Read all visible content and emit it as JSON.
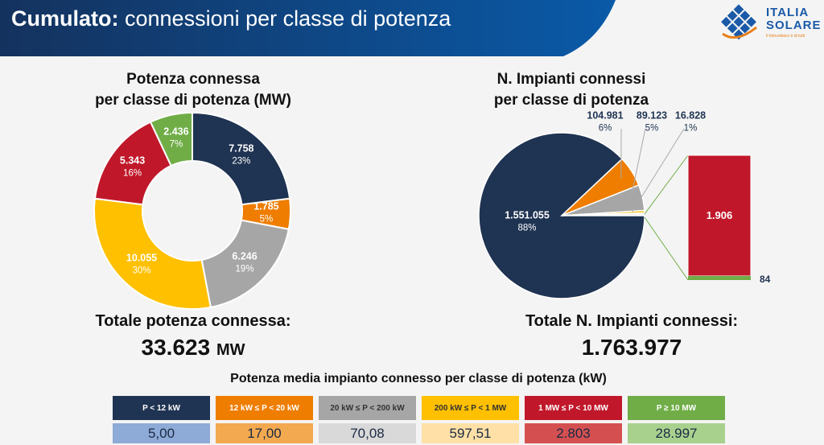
{
  "header": {
    "title_bold": "Cumulato:",
    "title_rest": "connessioni per classe di potenza",
    "logo_line1": "ITALIA",
    "logo_line2": "SOLARE",
    "logo_tag": "Il fotovoltaico è di tutti"
  },
  "chart_data": [
    {
      "type": "pie",
      "variant": "donut",
      "title": "Potenza connessa per classe di potenza (MW)",
      "title_line1": "Potenza connessa",
      "title_line2": "per classe di potenza (MW)",
      "slices": [
        {
          "label": "P < 12 kW",
          "value": "7.758",
          "pct": "23%",
          "color": "#1f3352",
          "text": "#fff"
        },
        {
          "label": "12 kW ≤ P < 20 kW",
          "value": "1.785",
          "pct": "5%",
          "color": "#ef7d00",
          "text": "#fff"
        },
        {
          "label": "20 kW ≤ P < 200 kW",
          "value": "6.246",
          "pct": "19%",
          "color": "#a6a6a6",
          "text": "#fff"
        },
        {
          "label": "200 kW ≤ P < 1 MW",
          "value": "10.055",
          "pct": "30%",
          "color": "#ffc000",
          "text": "#fff"
        },
        {
          "label": "1 MW ≤ P < 10 MW",
          "value": "5.343",
          "pct": "16%",
          "color": "#c0182a",
          "text": "#fff"
        },
        {
          "label": "P ≥ 10 MW",
          "value": "2.436",
          "pct": "7%",
          "color": "#70ad47",
          "text": "#fff"
        }
      ],
      "total_label": "Totale potenza connessa:",
      "total_value": "33.623",
      "total_unit": "MW"
    },
    {
      "type": "pie",
      "variant": "bar-of-pie",
      "title": "N. Impianti connessi per classe di potenza",
      "title_line1": "N. Impianti connessi",
      "title_line2": "per classe di potenza",
      "slices": [
        {
          "label": "P < 12 kW",
          "value": "1.551.055",
          "pct": "88%",
          "color": "#1f3352"
        },
        {
          "label": "12 kW ≤ P < 20 kW",
          "value": "104.981",
          "pct": "6%",
          "color": "#ef7d00"
        },
        {
          "label": "20 kW ≤ P < 200 kW",
          "value": "89.123",
          "pct": "5%",
          "color": "#a6a6a6"
        },
        {
          "label": "200 kW ≤ P < 1 MW",
          "value": "16.828",
          "pct": "1%",
          "color": "#ffc000"
        }
      ],
      "bar": [
        {
          "label": "1 MW ≤ P < 10 MW",
          "value": "1.906",
          "color": "#c0182a"
        },
        {
          "label": "P ≥ 10 MW",
          "value": "84",
          "color": "#70ad47"
        }
      ],
      "total_label": "Totale N. Impianti connessi:",
      "total_value": "1.763.977"
    },
    {
      "type": "table",
      "title": "Potenza media impianto connesso per classe di potenza (kW)",
      "headers": [
        "P < 12 kW",
        "12 kW ≤ P < 20 kW",
        "20 kW ≤ P < 200 kW",
        "200 kW ≤ P < 1 MW",
        "1 MW ≤ P  < 10 MW",
        "P ≥ 10 MW"
      ],
      "values": [
        "5,00",
        "17,00",
        "70,08",
        "597,51",
        "2.803",
        "28.997"
      ],
      "header_colors": [
        "#1f3352",
        "#ef7d00",
        "#a6a6a6",
        "#ffc000",
        "#c0182a",
        "#70ad47"
      ],
      "header_text": [
        "#fff",
        "#fff",
        "#333",
        "#333",
        "#fff",
        "#fff"
      ],
      "value_colors": [
        "#8eaad6",
        "#f2a94f",
        "#d9d9d9",
        "#ffe0a6",
        "#d45050",
        "#a9d18e"
      ]
    }
  ]
}
